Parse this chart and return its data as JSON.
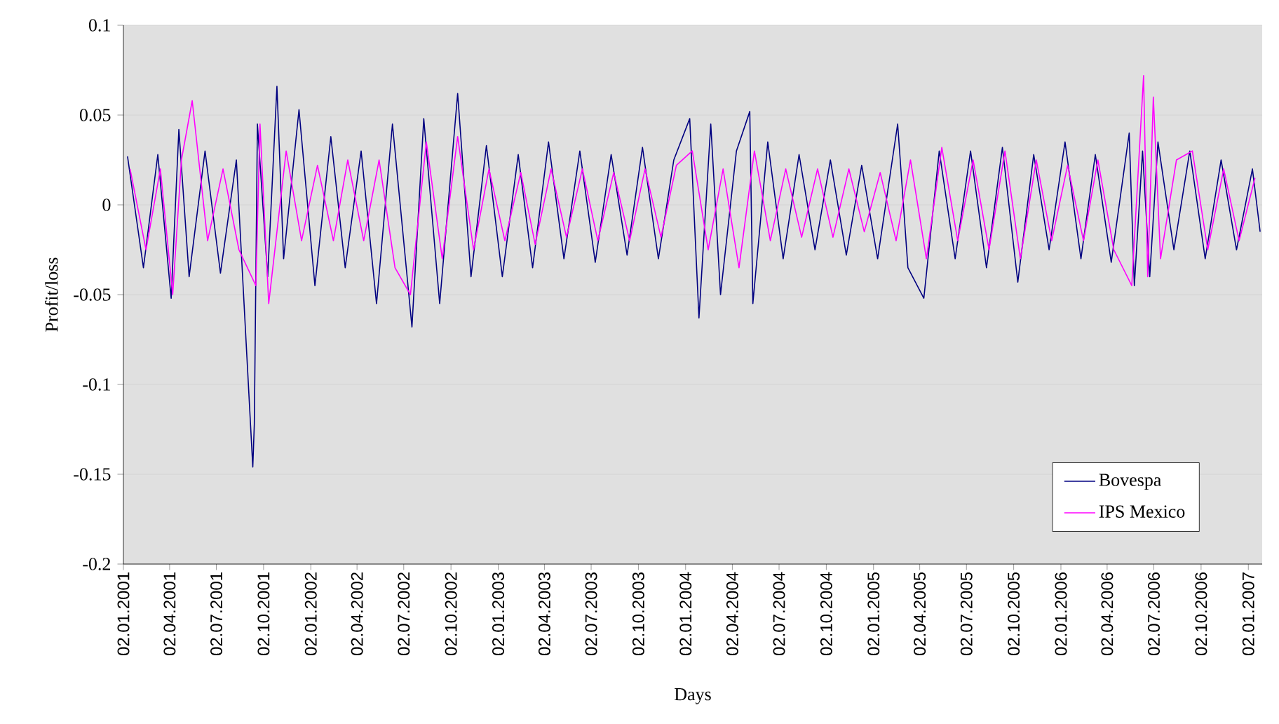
{
  "chart_data": {
    "type": "line",
    "xlabel": "Days",
    "ylabel": "Profit/loss",
    "xlim": [
      "2001-01-02",
      "2007-01-29"
    ],
    "ylim": [
      -0.2,
      0.1
    ],
    "yticks": [
      0.1,
      0.05,
      0,
      -0.05,
      -0.1,
      -0.15,
      -0.2
    ],
    "xticks": [
      {
        "value": "2001-01-02",
        "label": "02.01.2001"
      },
      {
        "value": "2001-04-02",
        "label": "02.04.2001"
      },
      {
        "value": "2001-07-02",
        "label": "02.07.2001"
      },
      {
        "value": "2001-10-02",
        "label": "02.10.2001"
      },
      {
        "value": "2002-01-02",
        "label": "02.01.2002"
      },
      {
        "value": "2002-04-02",
        "label": "02.04.2002"
      },
      {
        "value": "2002-07-02",
        "label": "02.07.2002"
      },
      {
        "value": "2002-10-02",
        "label": "02.10.2002"
      },
      {
        "value": "2003-01-02",
        "label": "02.01.2003"
      },
      {
        "value": "2003-04-02",
        "label": "02.04.2003"
      },
      {
        "value": "2003-07-02",
        "label": "02.07.2003"
      },
      {
        "value": "2003-10-02",
        "label": "02.10.2003"
      },
      {
        "value": "2004-01-02",
        "label": "02.01.2004"
      },
      {
        "value": "2004-04-02",
        "label": "02.04.2004"
      },
      {
        "value": "2004-07-02",
        "label": "02.07.2004"
      },
      {
        "value": "2004-10-02",
        "label": "02.10.2004"
      },
      {
        "value": "2005-01-02",
        "label": "02.01.2005"
      },
      {
        "value": "2005-04-02",
        "label": "02.04.2005"
      },
      {
        "value": "2005-07-02",
        "label": "02.07.2005"
      },
      {
        "value": "2005-10-02",
        "label": "02.10.2005"
      },
      {
        "value": "2006-01-02",
        "label": "02.01.2006"
      },
      {
        "value": "2006-04-02",
        "label": "02.04.2006"
      },
      {
        "value": "2006-07-02",
        "label": "02.07.2006"
      },
      {
        "value": "2006-10-02",
        "label": "02.10.2006"
      },
      {
        "value": "2007-01-02",
        "label": "02.01.2007"
      }
    ],
    "grid": "y",
    "legend": "bottom right",
    "series": [
      {
        "name": "Bovespa",
        "color": "#000080",
        "x": [
          "2001-01-10",
          "2001-02-10",
          "2001-03-10",
          "2001-04-05",
          "2001-04-20",
          "2001-05-10",
          "2001-06-10",
          "2001-07-10",
          "2001-08-10",
          "2001-09-11",
          "2001-09-14",
          "2001-09-20",
          "2001-10-10",
          "2001-10-28",
          "2001-11-10",
          "2001-12-10",
          "2002-01-10",
          "2002-02-10",
          "2002-03-10",
          "2002-04-10",
          "2002-05-10",
          "2002-06-10",
          "2002-07-18",
          "2002-08-10",
          "2002-09-10",
          "2002-10-15",
          "2002-11-10",
          "2002-12-10",
          "2003-01-10",
          "2003-02-10",
          "2003-03-10",
          "2003-04-10",
          "2003-05-10",
          "2003-06-10",
          "2003-07-10",
          "2003-08-10",
          "2003-09-10",
          "2003-10-10",
          "2003-11-10",
          "2003-12-10",
          "2004-01-10",
          "2004-01-28",
          "2004-02-20",
          "2004-03-10",
          "2004-04-10",
          "2004-05-06",
          "2004-05-12",
          "2004-06-10",
          "2004-07-10",
          "2004-08-10",
          "2004-09-10",
          "2004-10-10",
          "2004-11-10",
          "2004-12-10",
          "2005-01-10",
          "2005-02-18",
          "2005-03-10",
          "2005-04-10",
          "2005-05-10",
          "2005-06-10",
          "2005-07-10",
          "2005-08-10",
          "2005-09-10",
          "2005-10-10",
          "2005-11-10",
          "2005-12-10",
          "2006-01-10",
          "2006-02-10",
          "2006-03-10",
          "2006-04-10",
          "2006-05-15",
          "2006-05-25",
          "2006-06-10",
          "2006-06-24",
          "2006-07-10",
          "2006-08-10",
          "2006-09-10",
          "2006-10-10",
          "2006-11-10",
          "2006-12-10",
          "2007-01-10",
          "2007-01-25"
        ],
        "values": [
          0.027,
          -0.035,
          0.028,
          -0.052,
          0.042,
          -0.04,
          0.03,
          -0.038,
          0.025,
          -0.146,
          -0.122,
          0.045,
          -0.04,
          0.066,
          -0.03,
          0.053,
          -0.045,
          0.038,
          -0.035,
          0.03,
          -0.055,
          0.045,
          -0.068,
          0.048,
          -0.055,
          0.062,
          -0.04,
          0.033,
          -0.04,
          0.028,
          -0.035,
          0.035,
          -0.03,
          0.03,
          -0.032,
          0.028,
          -0.028,
          0.032,
          -0.03,
          0.025,
          0.048,
          -0.063,
          0.045,
          -0.05,
          0.03,
          0.052,
          -0.055,
          0.035,
          -0.03,
          0.028,
          -0.025,
          0.025,
          -0.028,
          0.022,
          -0.03,
          0.045,
          -0.035,
          -0.052,
          0.03,
          -0.03,
          0.03,
          -0.035,
          0.032,
          -0.043,
          0.028,
          -0.025,
          0.035,
          -0.03,
          0.028,
          -0.032,
          0.04,
          -0.045,
          0.03,
          -0.04,
          0.035,
          -0.025,
          0.03,
          -0.03,
          0.025,
          -0.025,
          0.02,
          -0.015
        ]
      },
      {
        "name": "IPS Mexico",
        "color": "#ff00ff",
        "x": [
          "2001-01-15",
          "2001-02-15",
          "2001-03-15",
          "2001-04-08",
          "2001-04-25",
          "2001-05-16",
          "2001-06-15",
          "2001-07-15",
          "2001-08-15",
          "2001-09-17",
          "2001-09-25",
          "2001-10-12",
          "2001-11-15",
          "2001-12-15",
          "2002-01-15",
          "2002-02-15",
          "2002-03-15",
          "2002-04-15",
          "2002-05-15",
          "2002-06-15",
          "2002-07-15",
          "2002-08-15",
          "2002-09-15",
          "2002-10-15",
          "2002-11-15",
          "2002-12-15",
          "2003-01-15",
          "2003-02-15",
          "2003-03-15",
          "2003-04-15",
          "2003-05-15",
          "2003-06-15",
          "2003-07-15",
          "2003-08-15",
          "2003-09-15",
          "2003-10-15",
          "2003-11-15",
          "2003-12-15",
          "2004-01-15",
          "2004-02-15",
          "2004-03-15",
          "2004-04-15",
          "2004-05-15",
          "2004-06-15",
          "2004-07-15",
          "2004-08-15",
          "2004-09-15",
          "2004-10-15",
          "2004-11-15",
          "2004-12-15",
          "2005-01-15",
          "2005-02-15",
          "2005-03-15",
          "2005-04-15",
          "2005-05-15",
          "2005-06-15",
          "2005-07-15",
          "2005-08-15",
          "2005-09-15",
          "2005-10-15",
          "2005-11-15",
          "2005-12-15",
          "2006-01-15",
          "2006-02-15",
          "2006-03-15",
          "2006-04-15",
          "2006-05-20",
          "2006-06-12",
          "2006-06-20",
          "2006-07-01",
          "2006-07-15",
          "2006-08-15",
          "2006-09-15",
          "2006-10-15",
          "2006-11-15",
          "2006-12-15",
          "2007-01-15"
        ],
        "values": [
          0.02,
          -0.025,
          0.02,
          -0.05,
          0.025,
          0.058,
          -0.02,
          0.02,
          -0.025,
          -0.045,
          0.045,
          -0.055,
          0.03,
          -0.02,
          0.022,
          -0.02,
          0.025,
          -0.02,
          0.025,
          -0.035,
          -0.05,
          0.035,
          -0.03,
          0.038,
          -0.025,
          0.02,
          -0.02,
          0.018,
          -0.022,
          0.02,
          -0.018,
          0.02,
          -0.02,
          0.018,
          -0.02,
          0.02,
          -0.018,
          0.022,
          0.03,
          -0.025,
          0.02,
          -0.035,
          0.03,
          -0.02,
          0.02,
          -0.018,
          0.02,
          -0.018,
          0.02,
          -0.015,
          0.018,
          -0.02,
          0.025,
          -0.03,
          0.032,
          -0.02,
          0.025,
          -0.025,
          0.03,
          -0.03,
          0.025,
          -0.02,
          0.022,
          -0.02,
          0.025,
          -0.025,
          -0.045,
          0.072,
          -0.04,
          0.06,
          -0.03,
          0.025,
          0.03,
          -0.025,
          0.02,
          -0.02,
          0.015
        ]
      }
    ]
  }
}
